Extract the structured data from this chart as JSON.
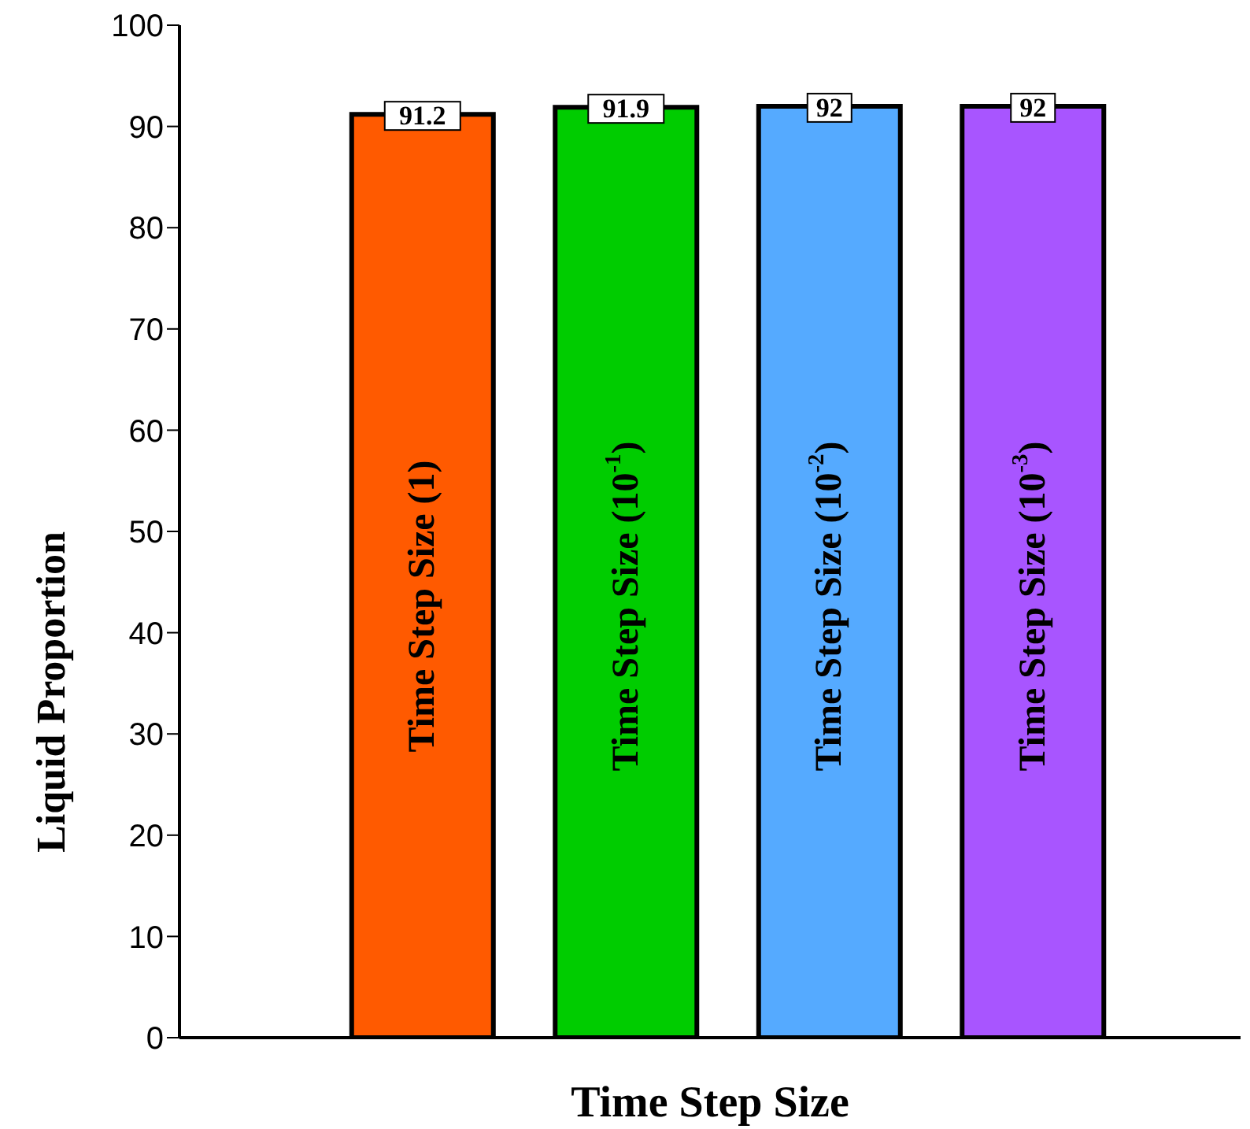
{
  "chart_data": {
    "type": "bar",
    "xlabel": "Time Step Size",
    "ylabel": "Liquid Proportion",
    "categories": [
      "Time Step Size (1)",
      "Time Step Size (10$^{-1}$)",
      "Time Step Size (10$^{-2}$)",
      "Time Step Size (10$^{-3}$)"
    ],
    "values": [
      91.2,
      91.9,
      92,
      92
    ],
    "colors": [
      "#ff5a00",
      "#00cc00",
      "#55aaff",
      "#a855ff"
    ],
    "ylim": [
      0,
      100
    ],
    "yticks": [
      0,
      10,
      20,
      30,
      40,
      50,
      60,
      70,
      80,
      90,
      100
    ],
    "data_labels": true,
    "grid": false,
    "legend": false
  }
}
